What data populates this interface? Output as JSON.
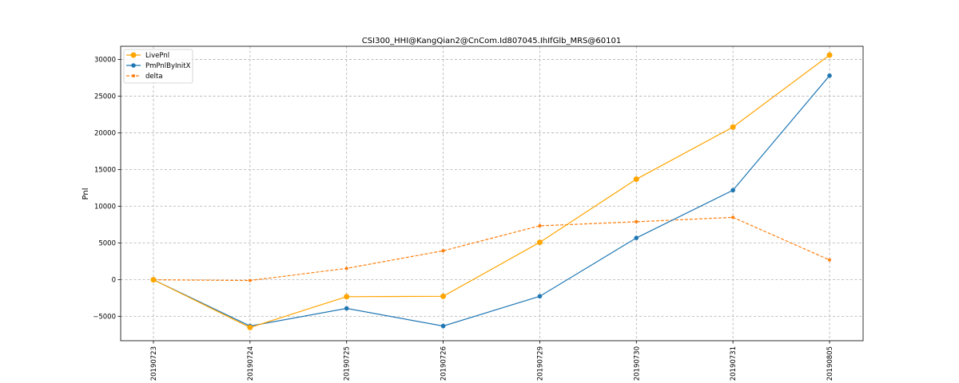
{
  "chart_data": {
    "type": "line",
    "title": "CSI300_HHI@KangQian2@CnCom.Id807045.IhIfGlb_MRS@60101",
    "xlabel": "",
    "ylabel": "Pnl",
    "categories": [
      "20190723",
      "20190724",
      "20190725",
      "20190726",
      "20190729",
      "20190730",
      "20190731",
      "20190805"
    ],
    "ylim": [
      -8300,
      31800
    ],
    "yticks": [
      -5000,
      0,
      5000,
      10000,
      15000,
      20000,
      25000,
      30000
    ],
    "grid": true,
    "legend_position": "top-left",
    "series": [
      {
        "name": "LivePnl",
        "color": "#ffa500",
        "style": "solid",
        "marker": "large-circle",
        "values": [
          0,
          -6500,
          -2300,
          -2250,
          5100,
          13700,
          20800,
          30600
        ]
      },
      {
        "name": "PmPnlByInitX",
        "color": "#1f77b4",
        "style": "solid",
        "marker": "circle",
        "values": [
          0,
          -6300,
          -3900,
          -6300,
          -2250,
          5700,
          12200,
          27800
        ]
      },
      {
        "name": "delta",
        "color": "#ff7f0e",
        "style": "dashed",
        "marker": "small-circle",
        "values": [
          0,
          -100,
          1550,
          3950,
          7350,
          7900,
          8500,
          2700
        ]
      }
    ]
  }
}
